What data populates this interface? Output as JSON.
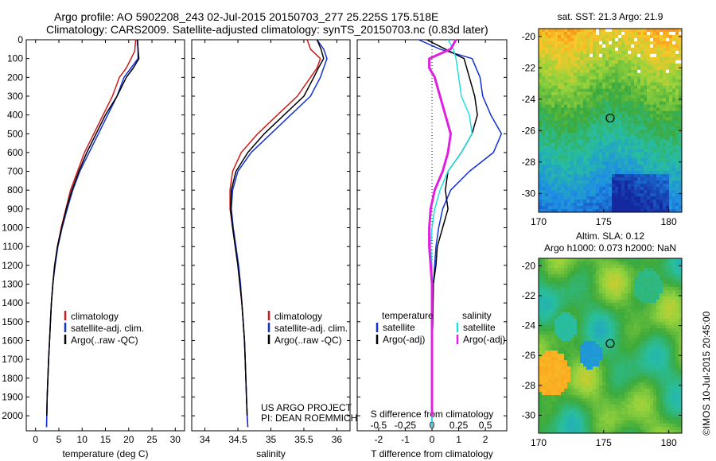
{
  "header": {
    "line1": "Argo profile: AO 5902208_243 02-Jul-2015 20150703_277 25.225S 175.518E",
    "line2": "Climatology: CARS2009. Satellite-adjusted climatology: synTS_20150703.nc (0.83d later)"
  },
  "colors": {
    "climatology": "#d11a1a",
    "satellite": "#1030d8",
    "argo": "#000000",
    "salinity_sat": "#20e0e0",
    "salinity_argo": "#e020e0"
  },
  "credit": {
    "line1": "US ARGO PROJECT",
    "line2": "PI: DEAN ROEMMICH"
  },
  "stamp": "©IMOS 10-Jul-2015 20:45:00",
  "chart_data": [
    {
      "type": "line",
      "name": "temperature-panel",
      "xlabel": "temperature (deg C)",
      "ylabel": "",
      "xlim": [
        -2,
        32
      ],
      "ylim": [
        2080,
        0
      ],
      "xticks": [
        0,
        5,
        10,
        15,
        20,
        25,
        30
      ],
      "yticks": [
        0,
        100,
        200,
        300,
        400,
        500,
        600,
        700,
        800,
        900,
        1000,
        1100,
        1200,
        1300,
        1400,
        1500,
        1600,
        1700,
        1800,
        1900,
        2000
      ],
      "legend": [
        "climatology",
        "satellite-adj. clim.",
        "Argo(..raw -QC)"
      ],
      "series": [
        {
          "name": "climatology",
          "color": "#d11a1a",
          "points": [
            [
              21.5,
              0
            ],
            [
              21.3,
              60
            ],
            [
              20.5,
              100
            ],
            [
              19.5,
              150
            ],
            [
              18,
              200
            ],
            [
              16.5,
              300
            ],
            [
              14.5,
              400
            ],
            [
              12.5,
              500
            ],
            [
              10.5,
              600
            ],
            [
              9,
              700
            ],
            [
              7.5,
              800
            ],
            [
              6.5,
              900
            ],
            [
              5.5,
              1000
            ],
            [
              4.7,
              1100
            ],
            [
              4.1,
              1200
            ],
            [
              3.7,
              1300
            ],
            [
              3.4,
              1400
            ],
            [
              3.2,
              1500
            ],
            [
              3,
              1600
            ],
            [
              2.8,
              1700
            ],
            [
              2.65,
              1800
            ],
            [
              2.5,
              1900
            ],
            [
              2.4,
              2000
            ],
            [
              2.35,
              2060
            ]
          ]
        },
        {
          "name": "satellite-adj. clim.",
          "color": "#1030d8",
          "points": [
            [
              21.8,
              0
            ],
            [
              22,
              50
            ],
            [
              22,
              100
            ],
            [
              20.5,
              150
            ],
            [
              19,
              200
            ],
            [
              17.5,
              300
            ],
            [
              15.5,
              400
            ],
            [
              13.5,
              500
            ],
            [
              11.5,
              600
            ],
            [
              9.5,
              700
            ],
            [
              8,
              800
            ],
            [
              6.8,
              900
            ],
            [
              5.7,
              1000
            ],
            [
              4.8,
              1100
            ],
            [
              4.2,
              1200
            ],
            [
              3.7,
              1300
            ],
            [
              3.4,
              1400
            ],
            [
              3.2,
              1500
            ],
            [
              3,
              1600
            ],
            [
              2.8,
              1700
            ],
            [
              2.65,
              1800
            ],
            [
              2.5,
              1900
            ],
            [
              2.4,
              2000
            ],
            [
              2.35,
              2060
            ]
          ]
        },
        {
          "name": "Argo(..raw -QC)",
          "color": "#000000",
          "points": [
            [
              21.9,
              0
            ],
            [
              22,
              50
            ],
            [
              22.2,
              100
            ],
            [
              21,
              150
            ],
            [
              19.5,
              200
            ],
            [
              17.5,
              300
            ],
            [
              15,
              400
            ],
            [
              13,
              500
            ],
            [
              11,
              600
            ],
            [
              9.3,
              700
            ],
            [
              7.8,
              800
            ],
            [
              6.6,
              900
            ],
            [
              5.6,
              1000
            ],
            [
              4.7,
              1100
            ],
            [
              4.1,
              1200
            ],
            [
              3.7,
              1300
            ],
            [
              3.4,
              1400
            ],
            [
              3.2,
              1500
            ],
            [
              3,
              1600
            ],
            [
              2.8,
              1700
            ],
            [
              2.65,
              1800
            ],
            [
              2.5,
              1900
            ],
            [
              2.4,
              2000
            ]
          ]
        }
      ]
    },
    {
      "type": "line",
      "name": "salinity-panel",
      "xlabel": "salinity",
      "xlim": [
        33.8,
        36.2
      ],
      "ylim": [
        2080,
        0
      ],
      "xticks": [
        34,
        34.5,
        35,
        35.5,
        36
      ],
      "legend": [
        "climatology",
        "satellite-adj. clim.",
        "Argo(..raw -QC)"
      ],
      "series": [
        {
          "name": "climatology",
          "color": "#d11a1a",
          "points": [
            [
              35.55,
              0
            ],
            [
              35.6,
              50
            ],
            [
              35.75,
              100
            ],
            [
              35.7,
              150
            ],
            [
              35.6,
              200
            ],
            [
              35.4,
              300
            ],
            [
              35.1,
              400
            ],
            [
              34.8,
              500
            ],
            [
              34.55,
              600
            ],
            [
              34.42,
              700
            ],
            [
              34.38,
              800
            ],
            [
              34.38,
              900
            ],
            [
              34.42,
              1000
            ],
            [
              34.46,
              1100
            ],
            [
              34.5,
              1200
            ],
            [
              34.53,
              1300
            ],
            [
              34.56,
              1400
            ],
            [
              34.58,
              1500
            ],
            [
              34.6,
              1600
            ],
            [
              34.61,
              1700
            ],
            [
              34.62,
              1800
            ],
            [
              34.63,
              1900
            ],
            [
              34.64,
              2000
            ],
            [
              34.65,
              2060
            ]
          ]
        },
        {
          "name": "satellite-adj. clim.",
          "color": "#1030d8",
          "points": [
            [
              35.7,
              0
            ],
            [
              35.8,
              50
            ],
            [
              35.85,
              100
            ],
            [
              35.8,
              150
            ],
            [
              35.75,
              200
            ],
            [
              35.6,
              300
            ],
            [
              35.3,
              400
            ],
            [
              35,
              500
            ],
            [
              34.7,
              600
            ],
            [
              34.5,
              700
            ],
            [
              34.42,
              800
            ],
            [
              34.4,
              900
            ],
            [
              34.43,
              1000
            ],
            [
              34.47,
              1100
            ],
            [
              34.51,
              1200
            ],
            [
              34.54,
              1300
            ],
            [
              34.56,
              1400
            ],
            [
              34.58,
              1500
            ],
            [
              34.6,
              1600
            ],
            [
              34.61,
              1700
            ],
            [
              34.62,
              1800
            ],
            [
              34.63,
              1900
            ],
            [
              34.64,
              2000
            ],
            [
              34.65,
              2060
            ]
          ]
        },
        {
          "name": "Argo(..raw -QC)",
          "color": "#000000",
          "points": [
            [
              35.7,
              0
            ],
            [
              35.76,
              50
            ],
            [
              35.8,
              100
            ],
            [
              35.72,
              150
            ],
            [
              35.65,
              200
            ],
            [
              35.5,
              300
            ],
            [
              35.2,
              400
            ],
            [
              34.9,
              500
            ],
            [
              34.65,
              600
            ],
            [
              34.47,
              700
            ],
            [
              34.4,
              800
            ],
            [
              34.39,
              900
            ],
            [
              34.42,
              1000
            ],
            [
              34.46,
              1100
            ],
            [
              34.5,
              1200
            ],
            [
              34.53,
              1300
            ],
            [
              34.56,
              1400
            ],
            [
              34.58,
              1500
            ],
            [
              34.6,
              1600
            ],
            [
              34.61,
              1700
            ],
            [
              34.62,
              1800
            ],
            [
              34.63,
              1900
            ],
            [
              34.64,
              2000
            ]
          ]
        }
      ]
    },
    {
      "type": "line",
      "name": "difference-panel",
      "xlabel": "T difference from climatology",
      "secondary_xlabel": "S difference from climatology",
      "xlim": [
        -2.8,
        2.8
      ],
      "ylim": [
        2080,
        0
      ],
      "xticks": [
        -2,
        -1,
        0,
        1,
        2
      ],
      "secondary_xticks": [
        -0.5,
        -0.25,
        0,
        0.25,
        0.5
      ],
      "legend_groups": [
        {
          "title": "temperature",
          "entries": [
            "satellite",
            "Argo(-adj)"
          ]
        },
        {
          "title": "salinity",
          "entries": [
            "satellite",
            "Argo(-adj)"
          ]
        }
      ],
      "series": [
        {
          "name": "satellite",
          "group": "temperature",
          "color": "#1030d8",
          "points": [
            [
              -0.5,
              0
            ],
            [
              0.3,
              50
            ],
            [
              1.5,
              100
            ],
            [
              1.8,
              200
            ],
            [
              1.9,
              300
            ],
            [
              2.2,
              400
            ],
            [
              2.6,
              500
            ],
            [
              2.3,
              600
            ],
            [
              1.4,
              700
            ],
            [
              0.7,
              800
            ],
            [
              0.4,
              900
            ],
            [
              0.25,
              1000
            ],
            [
              0.15,
              1100
            ],
            [
              0.1,
              1200
            ],
            [
              0.05,
              1300
            ],
            [
              0.03,
              1500
            ],
            [
              0,
              1700
            ],
            [
              0,
              2060
            ]
          ]
        },
        {
          "name": "Argo(-adj)",
          "group": "temperature",
          "color": "#000000",
          "points": [
            [
              -0.2,
              0
            ],
            [
              0.5,
              50
            ],
            [
              1.2,
              100
            ],
            [
              1.4,
              200
            ],
            [
              1.6,
              300
            ],
            [
              1.7,
              400
            ],
            [
              1.5,
              500
            ],
            [
              1.1,
              600
            ],
            [
              0.6,
              700
            ],
            [
              0.5,
              800
            ],
            [
              0.6,
              900
            ],
            [
              0.4,
              1000
            ],
            [
              0.2,
              1100
            ],
            [
              0.15,
              1200
            ],
            [
              0.05,
              1300
            ],
            [
              0.03,
              1500
            ],
            [
              0,
              1700
            ],
            [
              0,
              2000
            ]
          ]
        },
        {
          "name": "satellite",
          "group": "salinity",
          "color": "#20e0e0",
          "points": [
            [
              0.6,
              0
            ],
            [
              0.8,
              50
            ],
            [
              0.9,
              100
            ],
            [
              1,
              200
            ],
            [
              1.1,
              300
            ],
            [
              1.4,
              400
            ],
            [
              1.5,
              500
            ],
            [
              1.1,
              600
            ],
            [
              0.6,
              700
            ],
            [
              0.3,
              800
            ],
            [
              0.1,
              900
            ],
            [
              0,
              1000
            ],
            [
              -0.05,
              1100
            ],
            [
              0,
              1200
            ],
            [
              0,
              1400
            ],
            [
              0,
              1700
            ],
            [
              0,
              2060
            ]
          ]
        },
        {
          "name": "Argo(-adj)",
          "group": "salinity",
          "color": "#e020e0",
          "points": [
            [
              0.9,
              0
            ],
            [
              0.7,
              50
            ],
            [
              -0.1,
              100
            ],
            [
              -0.1,
              150
            ],
            [
              0.1,
              200
            ],
            [
              0.3,
              300
            ],
            [
              0.5,
              400
            ],
            [
              0.7,
              500
            ],
            [
              0.6,
              600
            ],
            [
              0.4,
              700
            ],
            [
              0.1,
              800
            ],
            [
              -0.05,
              900
            ],
            [
              -0.1,
              1000
            ],
            [
              -0.1,
              1100
            ],
            [
              -0.05,
              1200
            ],
            [
              0,
              1300
            ],
            [
              0,
              1500
            ],
            [
              0,
              1700
            ],
            [
              0,
              2000
            ]
          ]
        }
      ]
    },
    {
      "type": "heatmap",
      "name": "sst-map",
      "title": "sat. SST: 21.3 Argo: 21.9",
      "xlim": [
        170,
        181
      ],
      "ylim": [
        -31.2,
        -19.5
      ],
      "xticks": [
        170,
        175,
        180
      ],
      "yticks": [
        -20,
        -22,
        -24,
        -26,
        -28,
        -30
      ],
      "marker": [
        175.5,
        -25.2
      ]
    },
    {
      "type": "heatmap",
      "name": "sla-map",
      "title": "Altim. SLA: 0.12",
      "subtitle": "Argo h1000: 0.073 h2000: NaN",
      "xlim": [
        170,
        181
      ],
      "ylim": [
        -31.2,
        -19.5
      ],
      "xticks": [
        170,
        175,
        180
      ],
      "yticks": [
        -20,
        -22,
        -24,
        -26,
        -28,
        -30
      ],
      "marker": [
        175.5,
        -25.2
      ]
    }
  ]
}
